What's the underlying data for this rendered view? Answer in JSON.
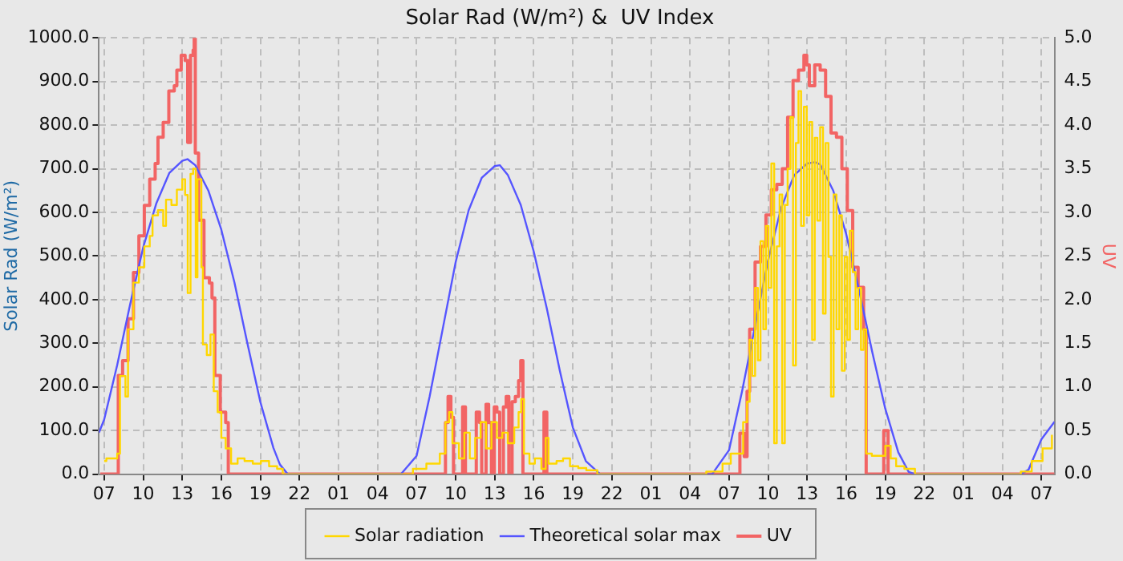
{
  "chart_data": {
    "type": "line",
    "title": "Solar Rad (W/m²) &  UV Index",
    "ylabel": "Solar Rad (W/m²)",
    "y2label": "UV",
    "xlim": [
      "--01-01T06:36",
      "--01-04T08:00"
    ],
    "xticks": [
      {
        "value": "--01-01T07:00",
        "label": "07"
      },
      {
        "value": "--01-01T10:00",
        "label": "10"
      },
      {
        "value": "--01-01T13:00",
        "label": "13"
      },
      {
        "value": "--01-01T16:00",
        "label": "16"
      },
      {
        "value": "--01-01T19:00",
        "label": "19"
      },
      {
        "value": "--01-01T22:00",
        "label": "22"
      },
      {
        "value": "--01-02T01:00",
        "label": "01"
      },
      {
        "value": "--01-02T04:00",
        "label": "04"
      },
      {
        "value": "--01-02T07:00",
        "label": "07"
      },
      {
        "value": "--01-02T10:00",
        "label": "10"
      },
      {
        "value": "--01-02T13:00",
        "label": "13"
      },
      {
        "value": "--01-02T16:00",
        "label": "16"
      },
      {
        "value": "--01-02T19:00",
        "label": "19"
      },
      {
        "value": "--01-02T22:00",
        "label": "22"
      },
      {
        "value": "--01-03T01:00",
        "label": "01"
      },
      {
        "value": "--01-03T04:00",
        "label": "04"
      },
      {
        "value": "--01-03T07:00",
        "label": "07"
      },
      {
        "value": "--01-03T10:00",
        "label": "10"
      },
      {
        "value": "--01-03T13:00",
        "label": "13"
      },
      {
        "value": "--01-03T16:00",
        "label": "16"
      },
      {
        "value": "--01-03T19:00",
        "label": "19"
      },
      {
        "value": "--01-03T22:00",
        "label": "22"
      },
      {
        "value": "--01-04T01:00",
        "label": "01"
      },
      {
        "value": "--01-04T04:00",
        "label": "04"
      },
      {
        "value": "--01-04T07:00",
        "label": "07"
      }
    ],
    "ylim": [
      0,
      1000
    ],
    "yticks": [
      {
        "value": 0,
        "label": "0.0"
      },
      {
        "value": 100,
        "label": "100.0"
      },
      {
        "value": 200,
        "label": "200.0"
      },
      {
        "value": 300,
        "label": "300.0"
      },
      {
        "value": 400,
        "label": "400.0"
      },
      {
        "value": 500,
        "label": "500.0"
      },
      {
        "value": 600,
        "label": "600.0"
      },
      {
        "value": 700,
        "label": "700.0"
      },
      {
        "value": 800,
        "label": "800.0"
      },
      {
        "value": 900,
        "label": "900.0"
      },
      {
        "value": 1000,
        "label": "1000.0"
      }
    ],
    "y2lim": [
      0,
      5
    ],
    "y2ticks": [
      {
        "value": 0,
        "label": "0.0"
      },
      {
        "value": 0.5,
        "label": "0.5"
      },
      {
        "value": 1,
        "label": "1.0"
      },
      {
        "value": 1.5,
        "label": "1.5"
      },
      {
        "value": 2,
        "label": "2.0"
      },
      {
        "value": 2.5,
        "label": "2.5"
      },
      {
        "value": 3,
        "label": "3.0"
      },
      {
        "value": 3.5,
        "label": "3.5"
      },
      {
        "value": 4,
        "label": "4.0"
      },
      {
        "value": 4.5,
        "label": "4.5"
      },
      {
        "value": 5,
        "label": "5.0"
      }
    ],
    "grid": true,
    "legend": "bottom",
    "marker": "none",
    "line_style": "solid",
    "series": [
      {
        "name": "Solar radiation",
        "type": "step",
        "axis": "y",
        "color": "#ffd700",
        "x": [
          "--01-01T07:00",
          "--01-01T07:10",
          "--01-01T08:00",
          "--01-01T08:13",
          "--01-01T08:38",
          "--01-01T08:50",
          "--01-01T09:15",
          "--01-01T09:40",
          "--01-01T10:05",
          "--01-01T10:30",
          "--01-01T10:43",
          "--01-01T11:08",
          "--01-01T11:32",
          "--01-01T11:45",
          "--01-01T12:10",
          "--01-01T12:35",
          "--01-01T13:00",
          "--01-01T13:13",
          "--01-01T13:25",
          "--01-01T13:38",
          "--01-01T13:50",
          "--01-01T14:02",
          "--01-01T14:10",
          "--01-01T14:28",
          "--01-01T14:35",
          "--01-01T14:53",
          "--01-01T15:10",
          "--01-01T15:25",
          "--01-01T15:43",
          "--01-01T16:00",
          "--01-01T16:20",
          "--01-01T16:45",
          "--01-01T17:15",
          "--01-01T17:47",
          "--01-01T18:25",
          "--01-01T19:02",
          "--01-01T19:40",
          "--01-01T20:17",
          "--01-01T20:43",
          "--01-02T06:43",
          "--01-02T07:45",
          "--01-02T08:47",
          "--01-02T09:13",
          "--01-02T09:30",
          "--01-02T09:45",
          "--01-02T10:15",
          "--01-02T10:40",
          "--01-02T11:05",
          "--01-02T11:30",
          "--01-02T11:55",
          "--01-02T12:20",
          "--01-02T12:45",
          "--01-02T13:10",
          "--01-02T13:35",
          "--01-02T14:00",
          "--01-02T14:30",
          "--01-02T14:50",
          "--01-02T15:02",
          "--01-02T15:15",
          "--01-02T15:40",
          "--01-02T16:05",
          "--01-02T16:35",
          "--01-02T16:55",
          "--01-02T17:08",
          "--01-02T17:45",
          "--01-02T18:15",
          "--01-02T18:47",
          "--01-02T19:25",
          "--01-02T20:02",
          "--01-02T20:53",
          "--01-03T05:15",
          "--01-03T06:30",
          "--01-03T07:08",
          "--01-03T07:45",
          "--01-03T08:05",
          "--01-03T08:23",
          "--01-03T08:35",
          "--01-03T08:47",
          "--01-03T09:00",
          "--01-03T09:13",
          "--01-03T09:25",
          "--01-03T09:38",
          "--01-03T09:50",
          "--01-03T10:02",
          "--01-03T10:15",
          "--01-03T10:28",
          "--01-03T10:40",
          "--01-03T10:53",
          "--01-03T11:05",
          "--01-03T11:17",
          "--01-03T11:30",
          "--01-03T11:43",
          "--01-03T11:55",
          "--01-03T12:08",
          "--01-03T12:20",
          "--01-03T12:32",
          "--01-03T12:45",
          "--01-03T12:58",
          "--01-03T13:10",
          "--01-03T13:23",
          "--01-03T13:35",
          "--01-03T13:47",
          "--01-03T14:00",
          "--01-03T14:13",
          "--01-03T14:25",
          "--01-03T14:38",
          "--01-03T14:50",
          "--01-03T15:02",
          "--01-03T15:15",
          "--01-03T15:28",
          "--01-03T15:40",
          "--01-03T15:53",
          "--01-03T16:05",
          "--01-03T16:17",
          "--01-03T16:30",
          "--01-03T16:43",
          "--01-03T16:55",
          "--01-03T17:08",
          "--01-03T17:20",
          "--01-03T17:32",
          "--01-03T17:58",
          "--01-03T18:35",
          "--01-03T19:00",
          "--01-03T19:25",
          "--01-03T19:50",
          "--01-03T20:28",
          "--01-03T21:17",
          "--01-04T05:25",
          "--01-04T06:15",
          "--01-04T07:05",
          "--01-04T07:48"
        ],
        "values": [
          30,
          36,
          47,
          225,
          178,
          332,
          439,
          474,
          522,
          546,
          593,
          605,
          569,
          629,
          617,
          652,
          676,
          640,
          415,
          688,
          700,
          451,
          676,
          474,
          297,
          273,
          320,
          190,
          142,
          83,
          59,
          24,
          36,
          30,
          24,
          30,
          18,
          12,
          0,
          12,
          24,
          47,
          119,
          142,
          71,
          36,
          95,
          36,
          83,
          119,
          59,
          119,
          83,
          95,
          71,
          107,
          142,
          172,
          47,
          24,
          36,
          12,
          83,
          24,
          30,
          36,
          18,
          14,
          9,
          0,
          6,
          24,
          47,
          47,
          119,
          166,
          308,
          225,
          427,
          261,
          534,
          332,
          569,
          427,
          712,
          71,
          522,
          641,
          71,
          617,
          700,
          818,
          249,
          759,
          878,
          569,
          842,
          593,
          807,
          308,
          771,
          581,
          795,
          368,
          759,
          498,
          178,
          641,
          332,
          593,
          237,
          498,
          308,
          558,
          463,
          332,
          427,
          285,
          332,
          47,
          42,
          42,
          65,
          36,
          18,
          12,
          0,
          6,
          30,
          59,
          90
        ]
      },
      {
        "name": "Theoretical solar max",
        "type": "line",
        "axis": "y",
        "color": "#5555ff",
        "x": [
          "--01-01T06:36",
          "--01-01T07:00",
          "--01-01T08:00",
          "--01-01T09:00",
          "--01-01T10:00",
          "--01-01T11:00",
          "--01-01T12:00",
          "--01-01T13:00",
          "--01-01T13:24",
          "--01-01T14:00",
          "--01-01T15:00",
          "--01-01T16:00",
          "--01-01T17:00",
          "--01-01T18:00",
          "--01-01T19:00",
          "--01-01T20:00",
          "--01-01T20:30",
          "--01-01T21:06",
          "--01-02T05:48",
          "--01-02T07:00",
          "--01-02T08:00",
          "--01-02T09:00",
          "--01-02T10:00",
          "--01-02T11:00",
          "--01-02T12:00",
          "--01-02T13:00",
          "--01-02T13:24",
          "--01-02T14:00",
          "--01-02T15:00",
          "--01-02T16:00",
          "--01-02T17:00",
          "--01-02T18:00",
          "--01-02T19:00",
          "--01-02T20:00",
          "--01-02T21:06",
          "--01-03T05:42",
          "--01-03T07:00",
          "--01-03T08:00",
          "--01-03T09:00",
          "--01-03T10:00",
          "--01-03T11:00",
          "--01-03T12:00",
          "--01-03T13:00",
          "--01-03T13:36",
          "--01-03T14:00",
          "--01-03T15:00",
          "--01-03T16:00",
          "--01-03T17:00",
          "--01-03T18:00",
          "--01-03T19:00",
          "--01-03T20:00",
          "--01-03T20:48",
          "--01-03T21:18",
          "--01-04T05:24",
          "--01-04T06:00",
          "--01-04T07:00",
          "--01-04T08:00"
        ],
        "values": [
          95,
          125,
          250,
          390,
          520,
          620,
          690,
          718,
          722,
          708,
          650,
          560,
          440,
          300,
          165,
          60,
          22,
          0,
          0,
          42,
          178,
          332,
          486,
          605,
          679,
          706,
          708,
          686,
          617,
          510,
          380,
          237,
          107,
          30,
          0,
          0,
          55,
          190,
          340,
          490,
          610,
          685,
          712,
          715,
          710,
          650,
          550,
          420,
          280,
          150,
          50,
          5,
          0,
          0,
          10,
          80,
          120
        ]
      },
      {
        "name": "UV",
        "type": "step",
        "axis": "y2",
        "color": "#f26464",
        "x": [
          "--01-01T06:42",
          "--01-01T08:05",
          "--01-01T08:25",
          "--01-01T08:50",
          "--01-01T09:15",
          "--01-01T09:40",
          "--01-01T10:05",
          "--01-01T10:30",
          "--01-01T10:55",
          "--01-01T11:08",
          "--01-01T11:32",
          "--01-01T11:58",
          "--01-01T12:23",
          "--01-01T12:35",
          "--01-01T12:55",
          "--01-01T13:13",
          "--01-01T13:25",
          "--01-01T13:38",
          "--01-01T13:50",
          "--01-01T13:55",
          "--01-01T14:00",
          "--01-01T14:15",
          "--01-01T14:40",
          "--01-01T15:05",
          "--01-01T15:17",
          "--01-01T15:30",
          "--01-01T15:55",
          "--01-01T16:20",
          "--01-01T16:32",
          "--01-02T09:13",
          "--01-02T09:25",
          "--01-02T09:38",
          "--01-02T09:50",
          "--01-02T10:32",
          "--01-02T10:45",
          "--01-02T11:35",
          "--01-02T11:50",
          "--01-02T12:00",
          "--01-02T12:20",
          "--01-02T12:32",
          "--01-02T12:45",
          "--01-02T12:58",
          "--01-02T13:10",
          "--01-02T13:23",
          "--01-02T13:40",
          "--01-02T13:53",
          "--01-02T14:05",
          "--01-02T14:20",
          "--01-02T14:35",
          "--01-02T14:50",
          "--01-02T15:00",
          "--01-02T15:10",
          "--01-02T16:47",
          "--01-02T17:00",
          "--01-03T07:50",
          "--01-03T08:10",
          "--01-03T08:23",
          "--01-03T08:35",
          "--01-03T09:00",
          "--01-03T09:25",
          "--01-03T09:50",
          "--01-03T10:15",
          "--01-03T10:40",
          "--01-03T11:05",
          "--01-03T11:30",
          "--01-03T11:55",
          "--01-03T12:20",
          "--01-03T12:45",
          "--01-03T12:58",
          "--01-03T13:10",
          "--01-03T13:35",
          "--01-03T14:00",
          "--01-03T14:25",
          "--01-03T14:50",
          "--01-03T15:15",
          "--01-03T15:40",
          "--01-03T16:05",
          "--01-03T16:30",
          "--01-03T16:55",
          "--01-03T17:20",
          "--01-03T17:32",
          "--01-03T18:53",
          "--01-03T19:13",
          "--01-04T08:00"
        ],
        "values": [
          0,
          1.13,
          1.3,
          1.78,
          2.31,
          2.73,
          3.08,
          3.38,
          3.56,
          3.86,
          4.03,
          4.39,
          4.45,
          4.63,
          4.8,
          4.74,
          3.8,
          4.8,
          4.86,
          5.0,
          3.68,
          2.91,
          2.25,
          2.19,
          2.02,
          1.13,
          0.71,
          0.59,
          0,
          0.59,
          0.89,
          0.65,
          0,
          0.77,
          0,
          0.71,
          0.59,
          0,
          0.8,
          0.59,
          0,
          0.77,
          0.71,
          0,
          0.77,
          0.89,
          0,
          0.83,
          0.89,
          1.07,
          1.3,
          0,
          0.71,
          0,
          0.47,
          0.2,
          0.95,
          1.66,
          2.43,
          2.61,
          2.97,
          3.26,
          3.32,
          3.5,
          4.09,
          4.51,
          4.63,
          4.8,
          4.69,
          4.45,
          4.69,
          4.63,
          4.33,
          3.91,
          3.86,
          3.5,
          3.02,
          2.37,
          2.14,
          1.66,
          0,
          0.5,
          0,
          0
        ]
      }
    ]
  }
}
